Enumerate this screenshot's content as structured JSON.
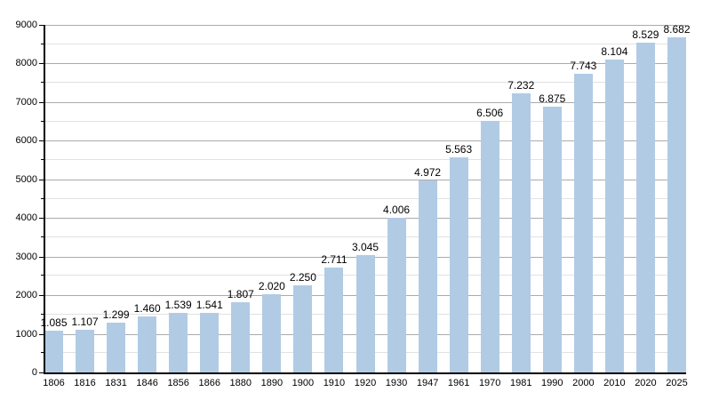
{
  "chart_data": {
    "type": "bar",
    "title": "",
    "xlabel": "",
    "ylabel": "",
    "categories": [
      "1806",
      "1816",
      "1831",
      "1846",
      "1856",
      "1866",
      "1880",
      "1890",
      "1900",
      "1910",
      "1920",
      "1930",
      "1947",
      "1961",
      "1970",
      "1981",
      "1990",
      "2000",
      "2010",
      "2020",
      "2025"
    ],
    "values": [
      1085,
      1107,
      1299,
      1460,
      1539,
      1541,
      1807,
      2020,
      2250,
      2711,
      3045,
      4006,
      4972,
      5563,
      6506,
      7232,
      6875,
      7743,
      8104,
      8529,
      8682
    ],
    "bar_value_labels": [
      "1.085",
      "1.107",
      "1.299",
      "1.460",
      "1.539",
      "1.541",
      "1.807",
      "2.020",
      "2.250",
      "2.711",
      "3.045",
      "4.006",
      "4.972",
      "5.563",
      "6.506",
      "7.232",
      "6.875",
      "7.743",
      "8.104",
      "8.529",
      "8.682"
    ],
    "ytick_labels": [
      "0",
      "1000",
      "2000",
      "3000",
      "4000",
      "5000",
      "6000",
      "7000",
      "8000",
      "9000"
    ],
    "ylim": [
      0,
      9000
    ],
    "ytick_step": 1000,
    "ytick_minor_step": 500,
    "grid": true,
    "legend": false,
    "colors": {
      "bar_fill": "#B1CBE5",
      "gridline_major": "#ababab",
      "gridline_minor": "#e2e2e2",
      "axis": "#000000",
      "text": "#000000",
      "background": "#ffffff"
    }
  }
}
